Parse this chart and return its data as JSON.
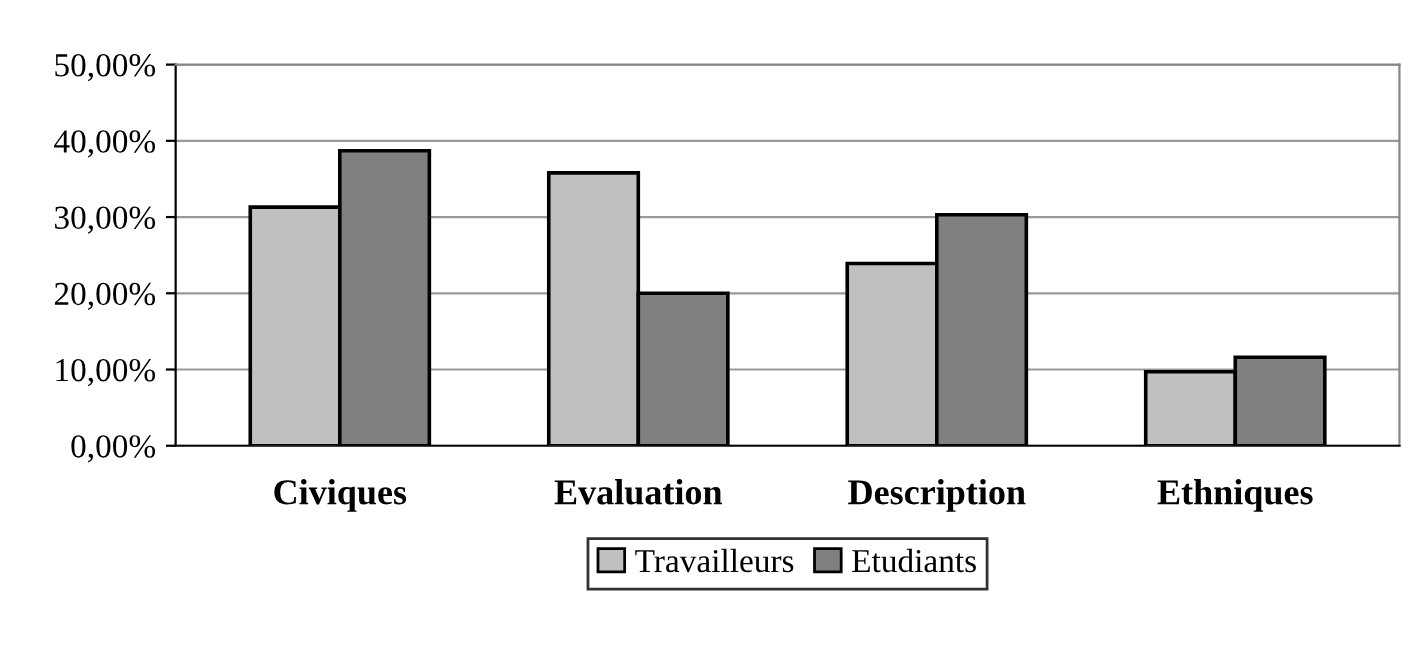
{
  "chart_data": {
    "type": "bar",
    "categories": [
      "Civiques",
      "Evaluation",
      "Description",
      "Ethniques"
    ],
    "series": [
      {
        "name": "Travailleurs",
        "color": "#c0c0c0",
        "values": [
          31.3,
          35.8,
          23.9,
          9.7
        ]
      },
      {
        "name": "Etudiants",
        "color": "#808080",
        "values": [
          38.7,
          20.0,
          30.3,
          11.6
        ]
      }
    ],
    "ylim": [
      0,
      50
    ],
    "yticks": [
      {
        "value": 0,
        "label": "0,00%"
      },
      {
        "value": 10,
        "label": "10,00%"
      },
      {
        "value": 20,
        "label": "20,00%"
      },
      {
        "value": 30,
        "label": "30,00%"
      },
      {
        "value": 40,
        "label": "40,00%"
      },
      {
        "value": 50,
        "label": "50,00%"
      }
    ],
    "grid": "y",
    "legend": "bottom"
  }
}
